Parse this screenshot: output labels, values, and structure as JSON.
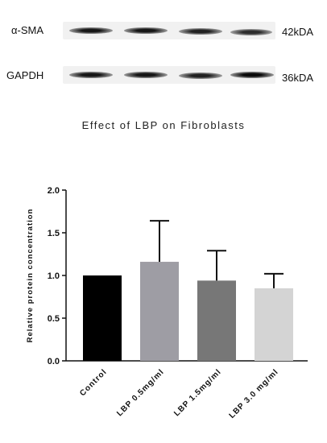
{
  "blot": {
    "rows": [
      {
        "protein": "α-SMA",
        "size": "42kDA",
        "band_intensity": [
          0.95,
          0.95,
          0.9,
          0.85
        ]
      },
      {
        "protein": "GAPDH",
        "size": "36kDA",
        "band_intensity": [
          0.95,
          0.95,
          0.9,
          1.0
        ]
      }
    ]
  },
  "chart_data": {
    "type": "bar",
    "title": "Effect of LBP on Fibroblasts",
    "xlabel": "",
    "ylabel": "Relative protein concentration",
    "ylim": [
      0,
      2.0
    ],
    "yticks": [
      "0.0",
      "0.5",
      "1.0",
      "1.5",
      "2.0"
    ],
    "categories": [
      "Control",
      "LBP 0.5mg/ml",
      "LBP 1.5mg/ml",
      "LBP 3.0 mg/ml"
    ],
    "values": [
      1.0,
      1.16,
      0.94,
      0.85
    ],
    "errors": [
      0,
      0.48,
      0.35,
      0.17
    ],
    "colors": [
      "#000000",
      "#9e9da4",
      "#777777",
      "#d4d4d4"
    ],
    "grid": false
  }
}
